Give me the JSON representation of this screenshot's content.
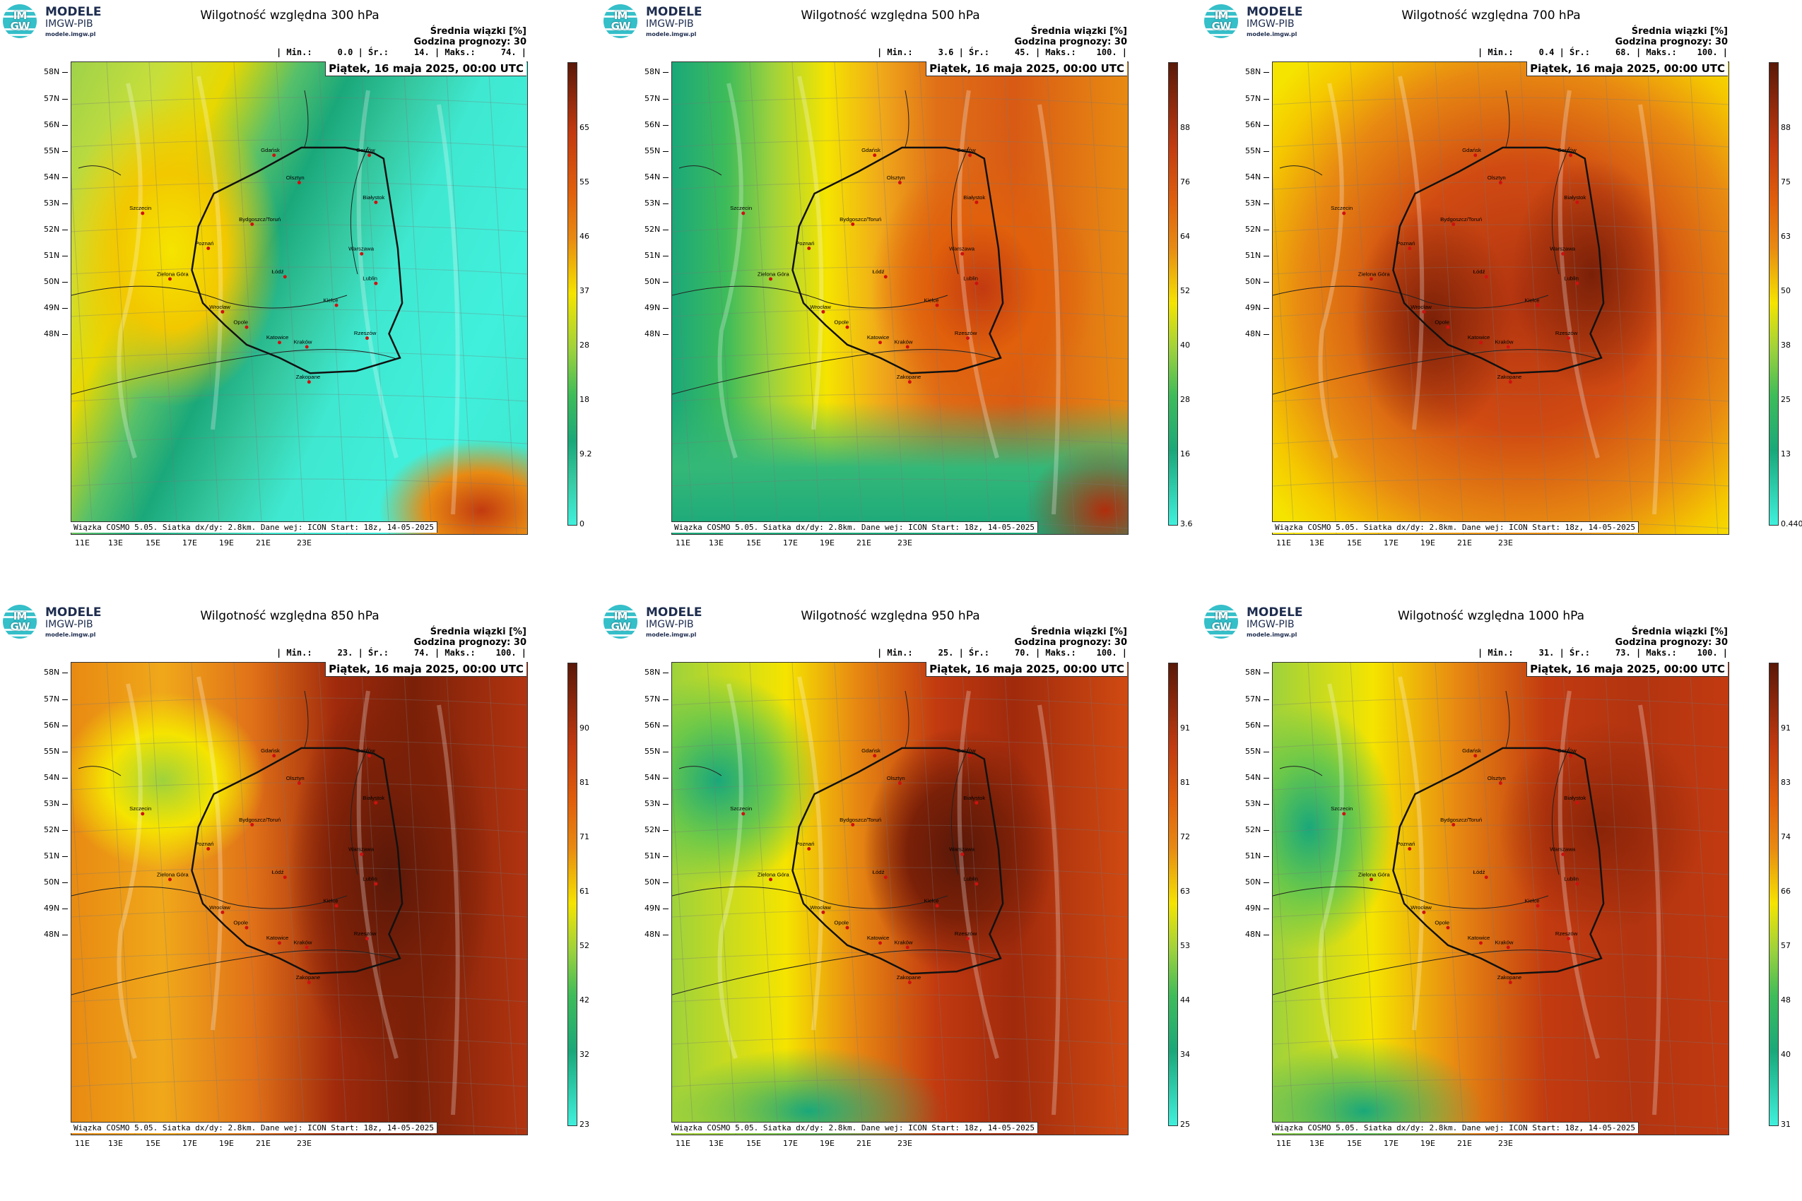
{
  "logo": {
    "name": "MODELE",
    "sub": "IMGW-PIB",
    "url": "modele.imgw.pl",
    "circle_text_top": "IM",
    "circle_text_bottom": "GW"
  },
  "header_labels": {
    "mean": "Średnia wiązki [%]",
    "forecast": "Godzina prognozy: 30"
  },
  "date": "Piątek, 16 maja 2025, 00:00 UTC",
  "credit": "Wiązka COSMO 5.05. Siatka dx/dy: 2.8km. Dane wej: ICON Start: 18z, 14-05-2025",
  "lat_labels": [
    "58N",
    "57N",
    "56N",
    "55N",
    "54N",
    "53N",
    "52N",
    "51N",
    "50N",
    "49N",
    "48N"
  ],
  "lon_labels": [
    "11E",
    "13E",
    "15E",
    "17E",
    "19E",
    "21E",
    "23E"
  ],
  "cities": [
    "Gdańsk",
    "Olsztyn",
    "Gorzów",
    "Białystok",
    "Szczecin",
    "Bydgoszcz/Toruń",
    "Poznań",
    "Warszawa",
    "Zielona Góra",
    "Łódź",
    "Lublin",
    "Wrocław",
    "Kielce",
    "Opole",
    "Katowice",
    "Kraków",
    "Rzeszów",
    "Zakopane"
  ],
  "colors": {
    "low": "#40f0dc",
    "green": "#1aa87a",
    "yellow": "#f5e400",
    "orange": "#e88a12",
    "red": "#c23a10",
    "dark": "#5a1808"
  },
  "panels": [
    {
      "title": "Wilgotność względna 300 hPa",
      "stats": "| Min.:     0.0 | Śr.:     14. | Maks.:     74. |",
      "ticks": [
        "65",
        "55",
        "46",
        "37",
        "28",
        "18",
        "9.2",
        "0"
      ],
      "style": "p300"
    },
    {
      "title": "Wilgotność względna 500 hPa",
      "stats": "| Min.:     3.6 | Śr.:     45. | Maks.:    100. |",
      "ticks": [
        "88",
        "76",
        "64",
        "52",
        "40",
        "28",
        "16",
        "3.6"
      ],
      "style": "p500"
    },
    {
      "title": "Wilgotność względna 700 hPa",
      "stats": "| Min.:     0.4 | Śr.:     68. | Maks.:    100. |",
      "ticks": [
        "88",
        "75",
        "63",
        "50",
        "38",
        "25",
        "13",
        "0.440"
      ],
      "style": "p700"
    },
    {
      "title": "Wilgotność względna 850 hPa",
      "stats": "| Min.:     23. | Śr.:     74. | Maks.:    100. |",
      "ticks": [
        "90",
        "81",
        "71",
        "61",
        "52",
        "42",
        "32",
        "23"
      ],
      "style": "p850"
    },
    {
      "title": "Wilgotność względna 950 hPa",
      "stats": "| Min.:     25. | Śr.:     70. | Maks.:    100. |",
      "ticks": [
        "91",
        "81",
        "72",
        "63",
        "53",
        "44",
        "34",
        "25"
      ],
      "style": "p950"
    },
    {
      "title": "Wilgotność względna 1000 hPa",
      "stats": "| Min.:     31. | Śr.:     73. | Maks.:    100. |",
      "ticks": [
        "91",
        "83",
        "74",
        "66",
        "57",
        "48",
        "40",
        "31"
      ],
      "style": "p1000"
    }
  ]
}
